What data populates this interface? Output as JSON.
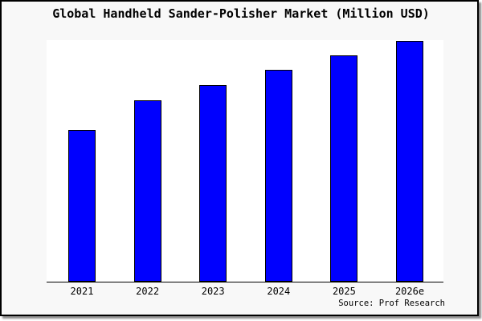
{
  "title": "Global Handheld Sander-Polisher Market (Million USD)",
  "source_note": "Source: Prof Research",
  "colors": {
    "bar_fill": "#0000fe",
    "bar_border": "#000000",
    "axis_line": "#000000",
    "plot_background": "#ffffff",
    "canvas_background": "#f8f8f8",
    "frame_border": "#000000"
  },
  "chart_data": {
    "type": "bar",
    "title": "Global Handheld Sander-Polisher Market (Million USD)",
    "categories": [
      "2021",
      "2022",
      "2023",
      "2024",
      "2025",
      "2026e"
    ],
    "values": [
      63,
      75.3,
      81.7,
      88,
      94,
      100
    ],
    "value_scale": "relative bar height percent of tallest bar (no y-axis or data labels shown)",
    "xlabel": "",
    "ylabel": "",
    "ylim": [
      0,
      100
    ],
    "grid": false,
    "legend": false,
    "bar_color": "#0000fe",
    "source": "Source: Prof Research"
  }
}
